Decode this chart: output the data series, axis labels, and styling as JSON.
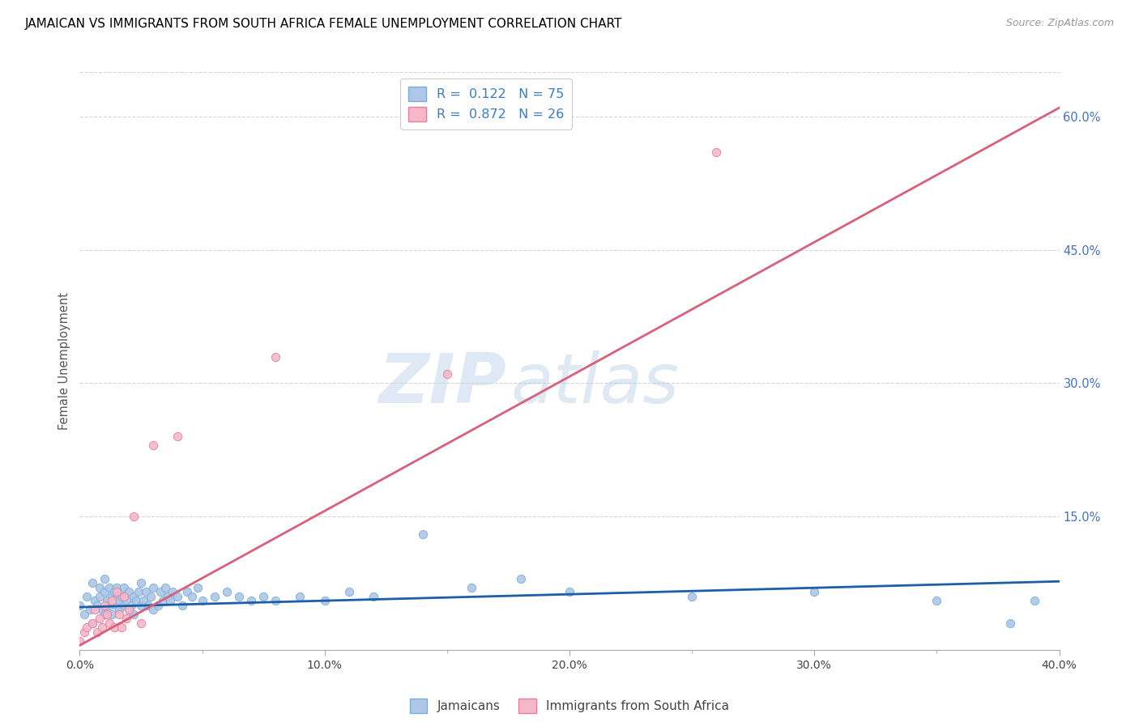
{
  "title": "JAMAICAN VS IMMIGRANTS FROM SOUTH AFRICA FEMALE UNEMPLOYMENT CORRELATION CHART",
  "source": "Source: ZipAtlas.com",
  "ylabel": "Female Unemployment",
  "xlim": [
    0.0,
    0.4
  ],
  "ylim": [
    0.0,
    0.65
  ],
  "xtick_labels": [
    "0.0%",
    "",
    "10.0%",
    "",
    "20.0%",
    "",
    "30.0%",
    "",
    "40.0%"
  ],
  "xtick_vals": [
    0.0,
    0.05,
    0.1,
    0.15,
    0.2,
    0.25,
    0.3,
    0.35,
    0.4
  ],
  "ytick_labels_right": [
    "15.0%",
    "30.0%",
    "45.0%",
    "60.0%"
  ],
  "ytick_vals_right": [
    0.15,
    0.3,
    0.45,
    0.6
  ],
  "series1_color": "#aec6e8",
  "series1_edge": "#7bafd4",
  "series2_color": "#f4b8c8",
  "series2_edge": "#e87fa0",
  "line1_color": "#1a5fa8",
  "line2_color": "#d9607a",
  "legend_label1": "R =  0.122   N = 75",
  "legend_label2": "R =  0.872   N = 26",
  "watermark_zip": "ZIP",
  "watermark_atlas": "atlas",
  "scatter1_x": [
    0.0,
    0.002,
    0.003,
    0.004,
    0.005,
    0.005,
    0.006,
    0.007,
    0.008,
    0.008,
    0.009,
    0.01,
    0.01,
    0.01,
    0.011,
    0.012,
    0.012,
    0.013,
    0.013,
    0.014,
    0.015,
    0.015,
    0.016,
    0.016,
    0.017,
    0.018,
    0.018,
    0.019,
    0.02,
    0.02,
    0.021,
    0.022,
    0.022,
    0.023,
    0.024,
    0.025,
    0.025,
    0.026,
    0.027,
    0.028,
    0.029,
    0.03,
    0.03,
    0.032,
    0.033,
    0.034,
    0.035,
    0.036,
    0.037,
    0.038,
    0.04,
    0.042,
    0.044,
    0.046,
    0.048,
    0.05,
    0.055,
    0.06,
    0.065,
    0.07,
    0.075,
    0.08,
    0.09,
    0.1,
    0.11,
    0.12,
    0.14,
    0.16,
    0.18,
    0.2,
    0.25,
    0.3,
    0.35,
    0.38,
    0.39
  ],
  "scatter1_y": [
    0.05,
    0.04,
    0.06,
    0.045,
    0.03,
    0.075,
    0.055,
    0.05,
    0.06,
    0.07,
    0.045,
    0.04,
    0.065,
    0.08,
    0.055,
    0.05,
    0.07,
    0.06,
    0.04,
    0.065,
    0.05,
    0.07,
    0.055,
    0.045,
    0.06,
    0.05,
    0.07,
    0.055,
    0.045,
    0.065,
    0.05,
    0.06,
    0.04,
    0.055,
    0.065,
    0.05,
    0.075,
    0.055,
    0.065,
    0.05,
    0.06,
    0.045,
    0.07,
    0.05,
    0.065,
    0.055,
    0.07,
    0.06,
    0.055,
    0.065,
    0.06,
    0.05,
    0.065,
    0.06,
    0.07,
    0.055,
    0.06,
    0.065,
    0.06,
    0.055,
    0.06,
    0.055,
    0.06,
    0.055,
    0.065,
    0.06,
    0.13,
    0.07,
    0.08,
    0.065,
    0.06,
    0.065,
    0.055,
    0.03,
    0.055
  ],
  "scatter2_x": [
    0.0,
    0.002,
    0.003,
    0.005,
    0.006,
    0.007,
    0.008,
    0.009,
    0.01,
    0.011,
    0.012,
    0.013,
    0.014,
    0.015,
    0.016,
    0.017,
    0.018,
    0.019,
    0.02,
    0.022,
    0.025,
    0.03,
    0.04,
    0.08,
    0.15,
    0.26
  ],
  "scatter2_y": [
    0.01,
    0.02,
    0.025,
    0.03,
    0.045,
    0.02,
    0.035,
    0.025,
    0.05,
    0.04,
    0.03,
    0.055,
    0.025,
    0.065,
    0.04,
    0.025,
    0.06,
    0.035,
    0.045,
    0.15,
    0.03,
    0.23,
    0.24,
    0.33,
    0.31,
    0.56
  ],
  "line1_x0": 0.0,
  "line1_x1": 0.4,
  "line1_y0": 0.048,
  "line1_y1": 0.077,
  "line2_x0": 0.0,
  "line2_x1": 0.4,
  "line2_y0": 0.005,
  "line2_y1": 0.61,
  "bottom_legend_label1": "Jamaicans",
  "bottom_legend_label2": "Immigrants from South Africa",
  "grid_color": "#cccccc",
  "title_fontsize": 11,
  "source_fontsize": 9
}
